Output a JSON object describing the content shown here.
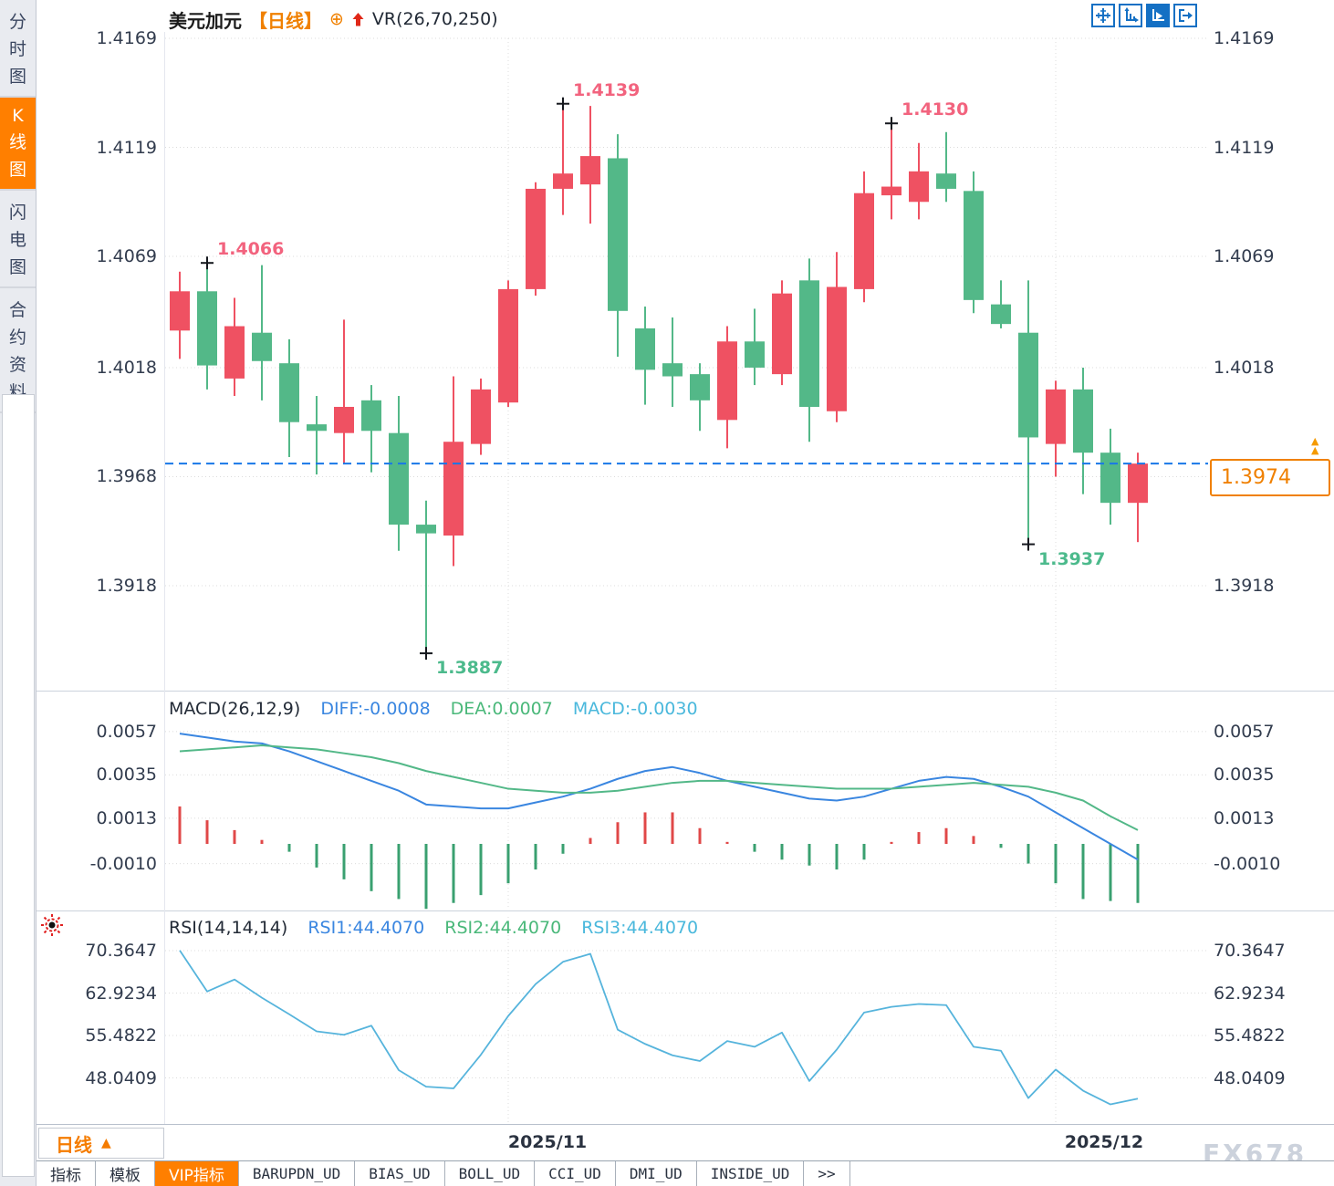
{
  "header": {
    "title": "美元加元",
    "timeframe_badge": "【日线】",
    "plus_icon": "⊕",
    "overlay_indicator": "VR(26,70,250)",
    "window_icons": [
      "move-crosshair-icon",
      "axis-scale-icon",
      "auto-scroll-icon",
      "pan-right-icon"
    ]
  },
  "sidebar": {
    "items": [
      {
        "label": "分时图",
        "active": false
      },
      {
        "label": "K线图",
        "active": true
      },
      {
        "label": "闪电图",
        "active": false
      },
      {
        "label": "合约资料",
        "active": false
      }
    ]
  },
  "current_price": {
    "value": "1.3974"
  },
  "price_axis": {
    "labels": [
      "1.4169",
      "1.4119",
      "1.4069",
      "1.4018",
      "1.3968",
      "1.3918"
    ]
  },
  "x_axis": {
    "labels": [
      "2025/11",
      "2025/12"
    ],
    "gridline_candle_indices": [
      12,
      32
    ]
  },
  "annotations": [
    {
      "label": "1.4066",
      "type": "high",
      "candle_index": 1
    },
    {
      "label": "1.3887",
      "type": "low",
      "candle_index": 9
    },
    {
      "label": "1.4139",
      "type": "high",
      "candle_index": 14
    },
    {
      "label": "1.4130",
      "type": "high",
      "candle_index": 26
    },
    {
      "label": "1.3937",
      "type": "low",
      "candle_index": 31
    }
  ],
  "macd": {
    "title": "MACD(26,12,9)",
    "diff_label": "DIFF:-0.0008",
    "dea_label": "DEA:0.0007",
    "macd_label": "MACD:-0.0030",
    "axis": [
      "0.0057",
      "0.0035",
      "0.0013",
      "-0.0010"
    ]
  },
  "rsi": {
    "title": "RSI(14,14,14)",
    "rsi1_label": "RSI1:44.4070",
    "rsi2_label": "RSI2:44.4070",
    "rsi3_label": "RSI3:44.4070",
    "axis": [
      "70.3647",
      "62.9234",
      "55.4822",
      "48.0409"
    ]
  },
  "period": {
    "label": "日线",
    "arrow": "▲"
  },
  "bottom_tabs": [
    {
      "label": "指标",
      "active": false
    },
    {
      "label": "模板",
      "active": false
    },
    {
      "label": "VIP指标",
      "active": true
    },
    {
      "label": "BARUPDN_UD",
      "active": false
    },
    {
      "label": "BIAS_UD",
      "active": false
    },
    {
      "label": "BOLL_UD",
      "active": false
    },
    {
      "label": "CCI_UD",
      "active": false
    },
    {
      "label": "DMI_UD",
      "active": false
    },
    {
      "label": "INSIDE_UD",
      "active": false
    },
    {
      "label": ">>",
      "active": false
    }
  ],
  "watermark": "FX678",
  "colors": {
    "up": "#ef5162",
    "down": "#53b888",
    "diff_line": "#3a86e0",
    "dea_line": "#53b888",
    "hist_pos": "#e04848",
    "hist_neg": "#3aa070",
    "rsi_line": "#56b4dc",
    "last_price_line": "#1877e8",
    "accent_orange": "#ff7f00",
    "icon_blue": "#1470c4",
    "ann_high": "#f2637e",
    "ann_low": "#4cba8c",
    "grid": "#dcdcdc",
    "axis_text": "#323c4e"
  },
  "chart_data": [
    {
      "type": "candlestick",
      "title": "美元加元 日线",
      "ylabel": "price",
      "ylim": [
        1.3918,
        1.4169
      ],
      "y_ticks": [
        "1.4169",
        "1.4119",
        "1.4069",
        "1.4018",
        "1.3968",
        "1.3918"
      ],
      "x_tick_labels": [
        "2025/11",
        "2025/12"
      ],
      "last_price": 1.3974,
      "columns": [
        "open",
        "high",
        "low",
        "close"
      ],
      "candles": [
        [
          1.4035,
          1.4062,
          1.4022,
          1.4053
        ],
        [
          1.4053,
          1.4066,
          1.4008,
          1.4019
        ],
        [
          1.4013,
          1.405,
          1.4005,
          1.4037
        ],
        [
          1.4034,
          1.4065,
          1.4003,
          1.4021
        ],
        [
          1.402,
          1.4031,
          1.3977,
          1.3993
        ],
        [
          1.3992,
          1.4005,
          1.3969,
          1.3989
        ],
        [
          1.3988,
          1.404,
          1.3974,
          1.4
        ],
        [
          1.4003,
          1.401,
          1.397,
          1.3989
        ],
        [
          1.3988,
          1.4005,
          1.3934,
          1.3946
        ],
        [
          1.3946,
          1.3957,
          1.3887,
          1.3942
        ],
        [
          1.3941,
          1.4014,
          1.3927,
          1.3984
        ],
        [
          1.3983,
          1.4013,
          1.3978,
          1.4008
        ],
        [
          1.4002,
          1.4058,
          1.4,
          1.4054
        ],
        [
          1.4054,
          1.4103,
          1.4051,
          1.41
        ],
        [
          1.41,
          1.4139,
          1.4088,
          1.4107
        ],
        [
          1.4102,
          1.4138,
          1.4084,
          1.4115
        ],
        [
          1.4114,
          1.4125,
          1.4023,
          1.4044
        ],
        [
          1.4036,
          1.4046,
          1.4001,
          1.4017
        ],
        [
          1.402,
          1.4041,
          1.4,
          1.4014
        ],
        [
          1.4015,
          1.402,
          1.3989,
          1.4003
        ],
        [
          1.3994,
          1.4037,
          1.3981,
          1.403
        ],
        [
          1.403,
          1.4045,
          1.401,
          1.4018
        ],
        [
          1.4015,
          1.4058,
          1.401,
          1.4052
        ],
        [
          1.4058,
          1.4068,
          1.3984,
          1.4
        ],
        [
          1.3998,
          1.4071,
          1.3993,
          1.4055
        ],
        [
          1.4054,
          1.4108,
          1.4048,
          1.4098
        ],
        [
          1.4097,
          1.413,
          1.4086,
          1.4101
        ],
        [
          1.4094,
          1.4121,
          1.4086,
          1.4108
        ],
        [
          1.4107,
          1.4126,
          1.4094,
          1.41
        ],
        [
          1.4099,
          1.4108,
          1.4043,
          1.4049
        ],
        [
          1.4047,
          1.4058,
          1.4036,
          1.4038
        ],
        [
          1.4034,
          1.4058,
          1.3937,
          1.3986
        ],
        [
          1.3983,
          1.4012,
          1.3968,
          1.4008
        ],
        [
          1.4008,
          1.4018,
          1.396,
          1.3979
        ],
        [
          1.3979,
          1.399,
          1.3946,
          1.3956
        ],
        [
          1.3956,
          1.3979,
          1.3938,
          1.3974
        ]
      ]
    },
    {
      "type": "bar",
      "title": "MACD(26,12,9)",
      "y_ticks": [
        "0.0057",
        "0.0035",
        "0.0013",
        "-0.0010"
      ],
      "series": [
        {
          "name": "DIFF",
          "values": [
            0.0056,
            0.0054,
            0.0052,
            0.0051,
            0.0047,
            0.0042,
            0.0037,
            0.0032,
            0.0027,
            0.002,
            0.0019,
            0.0018,
            0.0018,
            0.0021,
            0.0024,
            0.0028,
            0.0033,
            0.0037,
            0.0039,
            0.0036,
            0.0032,
            0.0029,
            0.0026,
            0.0023,
            0.0022,
            0.0024,
            0.0028,
            0.0032,
            0.0034,
            0.0033,
            0.0029,
            0.0024,
            0.0016,
            0.0008,
            0.0,
            -0.0008
          ]
        },
        {
          "name": "DEA",
          "values": [
            0.0047,
            0.0048,
            0.0049,
            0.005,
            0.0049,
            0.0048,
            0.0046,
            0.0044,
            0.0041,
            0.0037,
            0.0034,
            0.0031,
            0.0028,
            0.0027,
            0.0026,
            0.0026,
            0.0027,
            0.0029,
            0.0031,
            0.0032,
            0.0032,
            0.0031,
            0.003,
            0.0029,
            0.0028,
            0.0028,
            0.0028,
            0.0029,
            0.003,
            0.0031,
            0.003,
            0.0029,
            0.0026,
            0.0022,
            0.0014,
            0.0007
          ]
        },
        {
          "name": "MACD_hist",
          "values": [
            0.0019,
            0.0012,
            0.0007,
            0.0002,
            -0.0004,
            -0.0012,
            -0.0018,
            -0.0024,
            -0.0028,
            -0.0033,
            -0.003,
            -0.0026,
            -0.002,
            -0.0013,
            -0.0005,
            0.0003,
            0.0011,
            0.0016,
            0.0016,
            0.0008,
            0.0001,
            -0.0004,
            -0.0008,
            -0.0011,
            -0.0013,
            -0.0008,
            0.0001,
            0.0006,
            0.0008,
            0.0004,
            -0.0002,
            -0.001,
            -0.002,
            -0.0028,
            -0.0029,
            -0.003
          ]
        }
      ]
    },
    {
      "type": "line",
      "title": "RSI(14,14,14)",
      "y_ticks": [
        "70.3647",
        "62.9234",
        "55.4822",
        "48.0409"
      ],
      "series": [
        {
          "name": "RSI1",
          "values": [
            70.4,
            63.2,
            65.3,
            62.1,
            59.2,
            56.2,
            55.6,
            57.2,
            49.4,
            46.5,
            46.2,
            52.1,
            58.9,
            64.5,
            68.4,
            69.8,
            56.5,
            54.0,
            52.0,
            51.0,
            54.5,
            53.5,
            56.0,
            47.5,
            53.0,
            59.5,
            60.5,
            61.0,
            60.8,
            53.5,
            52.8,
            44.5,
            49.5,
            45.8,
            43.4,
            44.4
          ]
        }
      ]
    }
  ]
}
